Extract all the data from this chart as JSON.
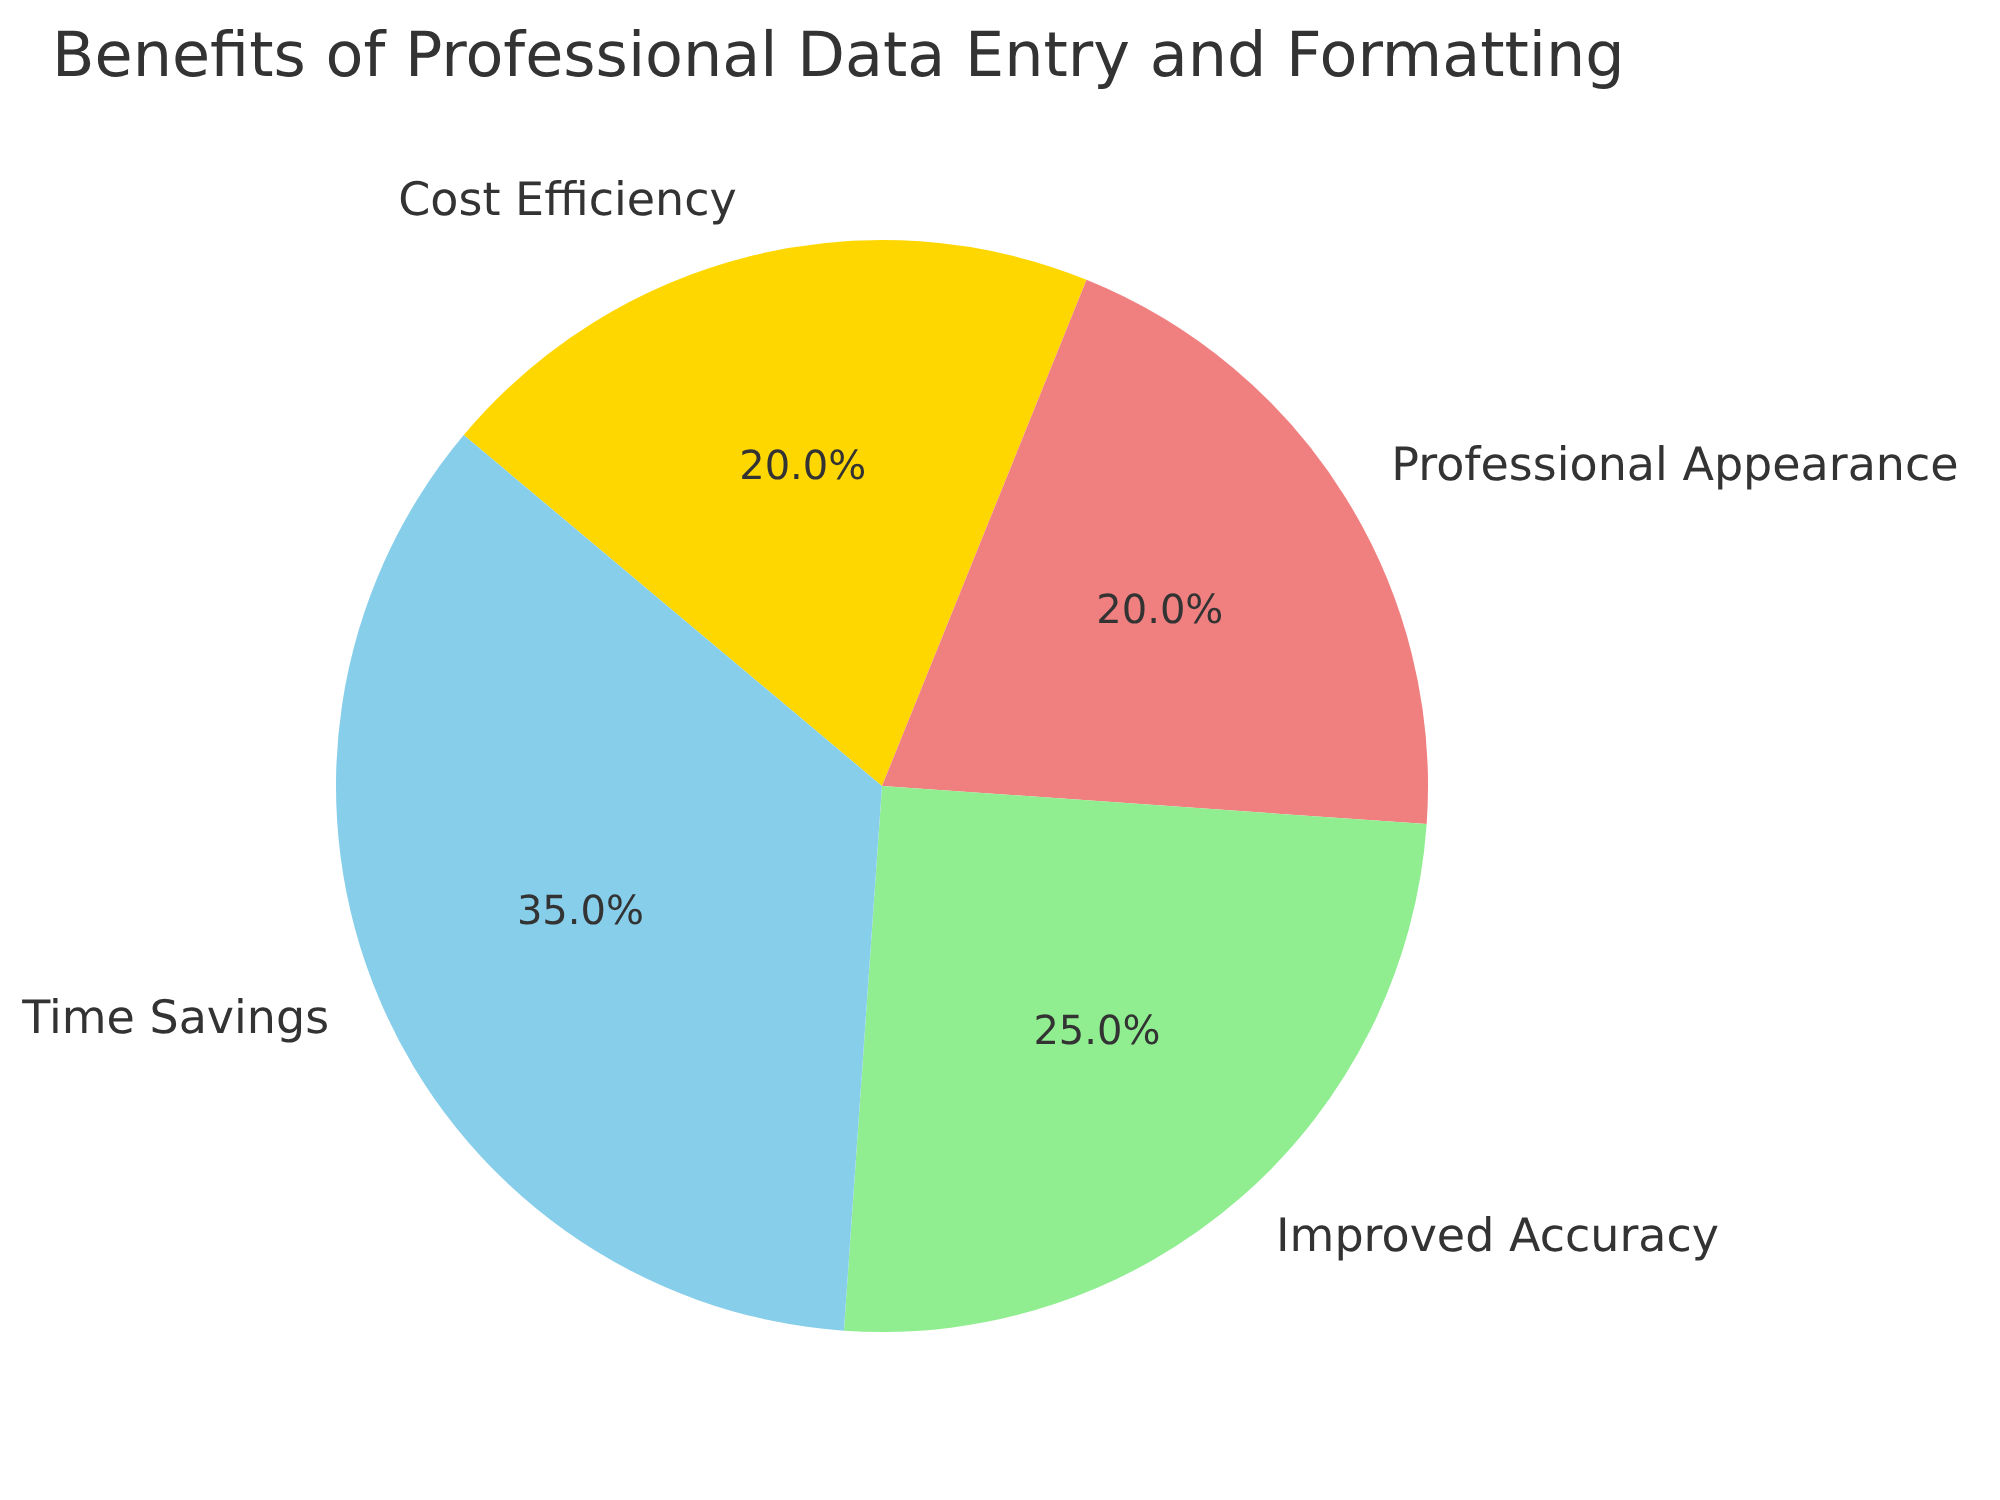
{
  "chart_data": {
    "type": "pie",
    "title": "Benefits of Professional Data Entry and Formatting",
    "categories": [
      "Cost Efficiency",
      "Professional Appearance",
      "Improved Accuracy",
      "Time Savings"
    ],
    "values": [
      20,
      20,
      25,
      35
    ],
    "colors": [
      "#ffd700",
      "#f08080",
      "#90ee90",
      "#87ceeb"
    ],
    "value_labels": [
      "20.0%",
      "20.0%",
      "25.0%",
      "35.0%"
    ],
    "legend": false
  }
}
